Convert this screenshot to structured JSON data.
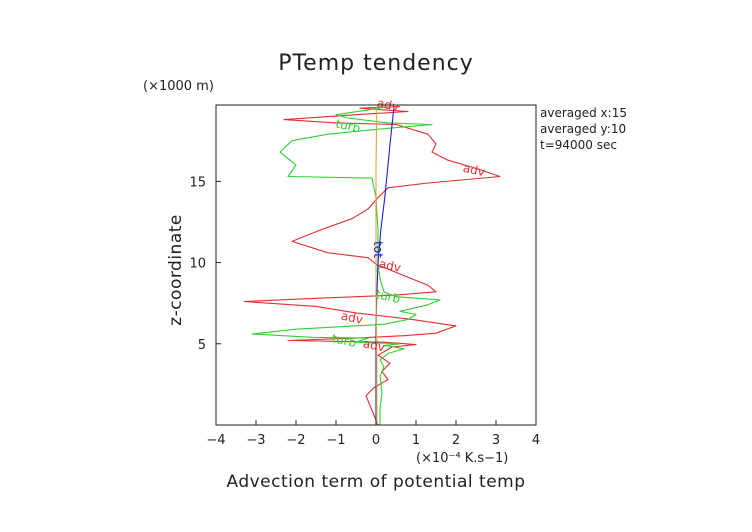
{
  "chart_data": {
    "type": "line",
    "title": "PTemp tendency",
    "xlabel": "Advection term of potential temp",
    "ylabel": "z-coordinate",
    "x_unit": "(×10⁻⁴ K.s−1)",
    "y_unit": "(×1000 m)",
    "xlim": [
      -4,
      4
    ],
    "ylim": [
      0,
      19.7
    ],
    "x_ticks": [
      -4,
      -3,
      -2,
      -1,
      0,
      1,
      2,
      3,
      4
    ],
    "x_tick_labels": [
      "−4",
      "−3",
      "−2",
      "−1",
      "0",
      "1",
      "2",
      "3",
      "4"
    ],
    "y_ticks": [
      5,
      10,
      15
    ],
    "y_tick_labels": [
      "5",
      "10",
      "15"
    ],
    "annotations": [
      "averaged  x:15",
      "averaged  y:10",
      "t=94000 sec"
    ],
    "series": [
      {
        "name": "adv",
        "color": "#e03030",
        "labels": [
          {
            "text": "adv",
            "x": 0.3,
            "y": 19.7
          },
          {
            "text": "adv",
            "x": 2.45,
            "y": 15.7
          },
          {
            "text": "adv",
            "x": 0.35,
            "y": 9.8
          },
          {
            "text": "adv",
            "x": -0.6,
            "y": 6.6
          },
          {
            "text": "adv",
            "x": -0.05,
            "y": 4.9
          }
        ],
        "points": [
          [
            0.05,
            0.0
          ],
          [
            -0.05,
            0.6
          ],
          [
            -0.15,
            1.2
          ],
          [
            -0.25,
            1.8
          ],
          [
            -0.05,
            2.3
          ],
          [
            0.3,
            2.8
          ],
          [
            0.15,
            3.3
          ],
          [
            0.35,
            3.8
          ],
          [
            0.05,
            4.3
          ],
          [
            0.4,
            4.8
          ],
          [
            1.0,
            4.95
          ],
          [
            0.2,
            5.1
          ],
          [
            -2.2,
            5.2
          ],
          [
            -0.5,
            5.35
          ],
          [
            0.7,
            5.5
          ],
          [
            1.5,
            5.65
          ],
          [
            2.0,
            6.1
          ],
          [
            0.9,
            6.5
          ],
          [
            -0.5,
            6.9
          ],
          [
            -1.5,
            7.3
          ],
          [
            -3.3,
            7.6
          ],
          [
            -1.5,
            7.8
          ],
          [
            0.5,
            8.0
          ],
          [
            1.5,
            8.2
          ],
          [
            1.3,
            8.6
          ],
          [
            0.8,
            9.1
          ],
          [
            0.0,
            9.9
          ],
          [
            -0.2,
            10.3
          ],
          [
            -1.2,
            10.6
          ],
          [
            -2.1,
            11.3
          ],
          [
            -1.4,
            12.0
          ],
          [
            -0.6,
            12.7
          ],
          [
            -0.2,
            13.3
          ],
          [
            0.05,
            14.0
          ],
          [
            0.3,
            14.6
          ],
          [
            1.3,
            14.9
          ],
          [
            3.1,
            15.3
          ],
          [
            2.5,
            15.8
          ],
          [
            1.8,
            16.3
          ],
          [
            1.4,
            16.8
          ],
          [
            1.5,
            17.3
          ],
          [
            1.3,
            17.9
          ],
          [
            0.5,
            18.5
          ],
          [
            -1.0,
            18.6
          ],
          [
            -2.3,
            18.8
          ],
          [
            -0.5,
            19.1
          ],
          [
            0.8,
            19.3
          ],
          [
            -0.4,
            19.5
          ],
          [
            0.6,
            19.6
          ]
        ]
      },
      {
        "name": "turb",
        "color": "#30d030",
        "labels": [
          {
            "text": "turb",
            "x": -0.7,
            "y": 18.4
          },
          {
            "text": "turb",
            "x": 0.3,
            "y": 7.9
          },
          {
            "text": "turb",
            "x": -0.8,
            "y": 5.2
          }
        ],
        "points": [
          [
            0.1,
            0.0
          ],
          [
            0.1,
            1.0
          ],
          [
            0.15,
            2.0
          ],
          [
            0.1,
            3.0
          ],
          [
            0.2,
            3.6
          ],
          [
            0.1,
            4.0
          ],
          [
            0.3,
            4.4
          ],
          [
            0.7,
            4.7
          ],
          [
            0.2,
            4.9
          ],
          [
            0.6,
            5.0
          ],
          [
            -0.5,
            5.1
          ],
          [
            -0.2,
            5.35
          ],
          [
            -1.6,
            5.4
          ],
          [
            -3.1,
            5.6
          ],
          [
            -2.0,
            5.9
          ],
          [
            0.2,
            6.2
          ],
          [
            0.8,
            6.5
          ],
          [
            1.0,
            6.8
          ],
          [
            0.6,
            7.0
          ],
          [
            1.3,
            7.4
          ],
          [
            1.6,
            7.7
          ],
          [
            0.5,
            7.9
          ],
          [
            0.2,
            8.2
          ],
          [
            0.1,
            9.0
          ],
          [
            0.05,
            10.0
          ],
          [
            0.05,
            12.0
          ],
          [
            0.0,
            14.0
          ],
          [
            -0.1,
            15.2
          ],
          [
            -2.2,
            15.3
          ],
          [
            -2.0,
            16.0
          ],
          [
            -2.4,
            16.8
          ],
          [
            -2.1,
            17.5
          ],
          [
            -1.2,
            17.9
          ],
          [
            0.0,
            18.2
          ],
          [
            1.4,
            18.5
          ],
          [
            0.3,
            18.6
          ],
          [
            -0.7,
            18.9
          ],
          [
            -1.0,
            19.1
          ],
          [
            -0.2,
            19.4
          ],
          [
            0.3,
            19.6
          ]
        ]
      },
      {
        "name": "tot",
        "color": "#2020d0",
        "labels": [
          {
            "text": "tot",
            "x": 0.05,
            "y": 10.8
          }
        ],
        "points": [
          [
            0.0,
            0.0
          ],
          [
            0.0,
            2.0
          ],
          [
            0.0,
            4.0
          ],
          [
            0.0,
            6.0
          ],
          [
            0.02,
            8.0
          ],
          [
            0.05,
            10.0
          ],
          [
            0.12,
            12.0
          ],
          [
            0.22,
            14.0
          ],
          [
            0.3,
            16.0
          ],
          [
            0.38,
            18.0
          ],
          [
            0.45,
            19.6
          ]
        ]
      },
      {
        "name": "",
        "color": "#e8a040",
        "labels": [],
        "points": [
          [
            0.02,
            0.0
          ],
          [
            0.02,
            4.0
          ],
          [
            0.0,
            8.0
          ],
          [
            0.0,
            12.0
          ],
          [
            0.0,
            16.0
          ],
          [
            0.02,
            19.6
          ]
        ]
      }
    ]
  }
}
